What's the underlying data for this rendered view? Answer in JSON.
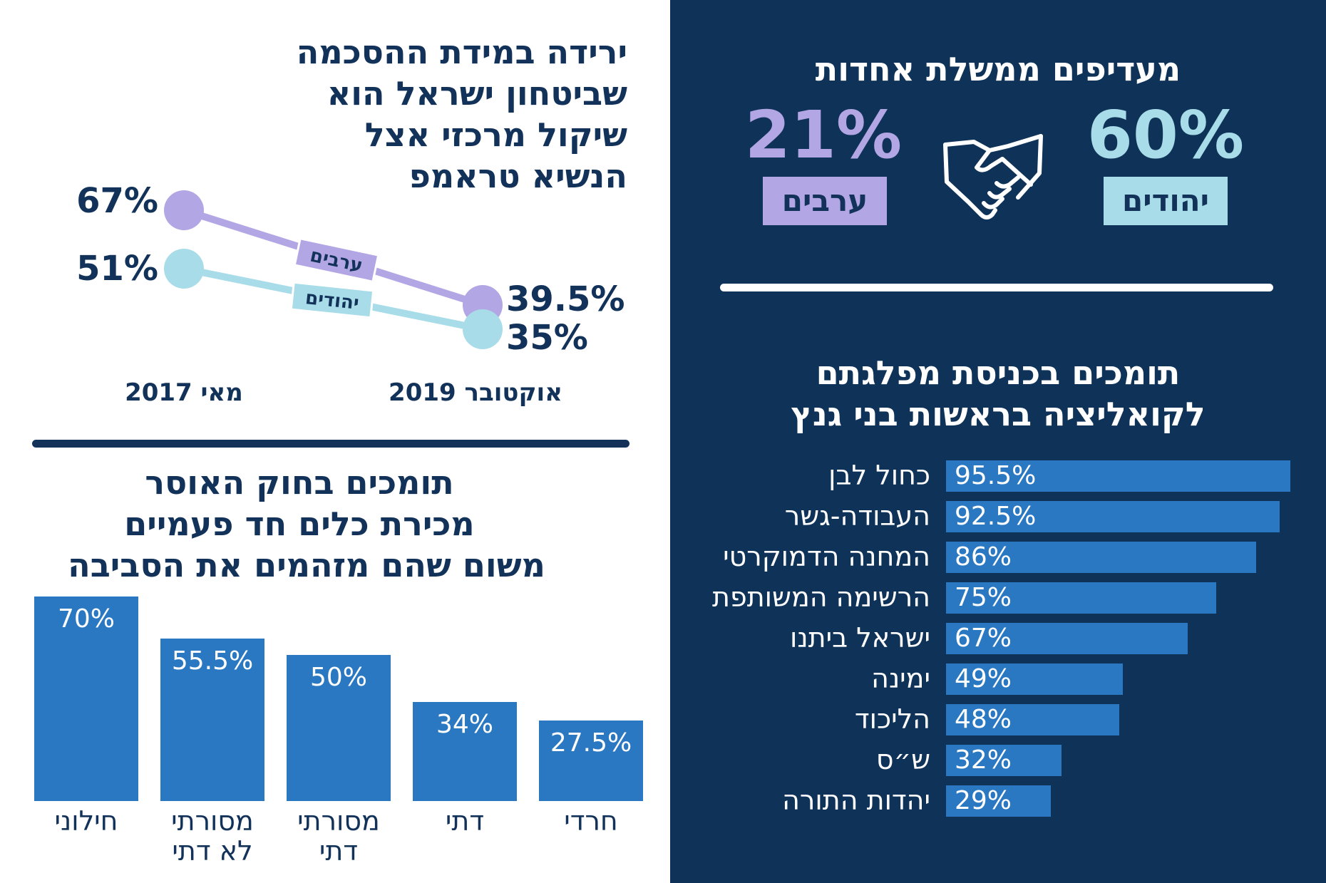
{
  "colors": {
    "navy": "#0f3358",
    "text_dark": "#12325a",
    "purple": "#b3a6e4",
    "light_blue": "#a8dce9",
    "bar_blue": "#2a78c2",
    "white": "#ffffff"
  },
  "icons": {
    "handshake": "handshake-icon"
  },
  "unity": {
    "title": "מעדיפים ממשלת אחדות",
    "jews_value": "60%",
    "jews_label": "יהודים",
    "arabs_value": "21%",
    "arabs_label": "ערבים"
  },
  "security": {
    "title_lines": [
      "ירידה במידת ההסכמה",
      "שביטחון ישראל הוא",
      "שיקול מרכזי אצל",
      "הנשיא טראמפ"
    ]
  },
  "coalition": {
    "title_lines": [
      "תומכים בכניסת מפלגתם",
      "לקואליציה בראשות בני גנץ"
    ]
  },
  "weapons": {
    "title_lines": [
      "תומכים בחוק האוסר",
      "מכירת כלים חד פעמיים",
      "משום שהם מזהמים את הסביבה"
    ]
  },
  "chart_data": [
    {
      "type": "line",
      "title": "ירידה במידת ההסכמה שביטחון ישראל הוא שיקול מרכזי אצל הנשיא טראמפ",
      "x": [
        "מאי 2017",
        "אוקטובר 2019"
      ],
      "series": [
        {
          "name": "ערבים",
          "values": [
            67,
            39.5
          ],
          "labels": [
            "67%",
            "39.5%"
          ],
          "color": "#b3a6e4"
        },
        {
          "name": "יהודים",
          "values": [
            51,
            35
          ],
          "labels": [
            "51%",
            "35%"
          ],
          "color": "#a8dce9"
        }
      ]
    },
    {
      "type": "bar",
      "orientation": "horizontal",
      "title": "תומכים בכניסת מפלגתם לקואליציה בראשות בני גנץ",
      "categories": [
        "כחול לבן",
        "העבודה-גשר",
        "המחנה הדמוקרטי",
        "הרשימה המשותפת",
        "ישראל ביתנו",
        "ימינה",
        "הליכוד",
        "ש״ס",
        "יהדות התורה"
      ],
      "values": [
        95.5,
        92.5,
        86,
        75,
        67,
        49,
        48,
        32,
        29
      ],
      "labels": [
        "95.5%",
        "92.5%",
        "86%",
        "75%",
        "67%",
        "49%",
        "48%",
        "32%",
        "29%"
      ],
      "xlim": [
        0,
        100
      ]
    },
    {
      "type": "bar",
      "orientation": "vertical",
      "title": "תומכים בחוק האוסר מכירת כלים חד פעמיים משום שהם מזהמים את הסביבה",
      "categories": [
        [
          "חילוני"
        ],
        [
          "מסורתי",
          "לא דתי"
        ],
        [
          "מסורתי",
          "דתי"
        ],
        [
          "דתי"
        ],
        [
          "חרדי"
        ]
      ],
      "values": [
        70,
        55.5,
        50,
        34,
        27.5
      ],
      "labels": [
        "70%",
        "55.5%",
        "50%",
        "34%",
        "27.5%"
      ],
      "ylim": [
        0,
        70
      ]
    }
  ]
}
